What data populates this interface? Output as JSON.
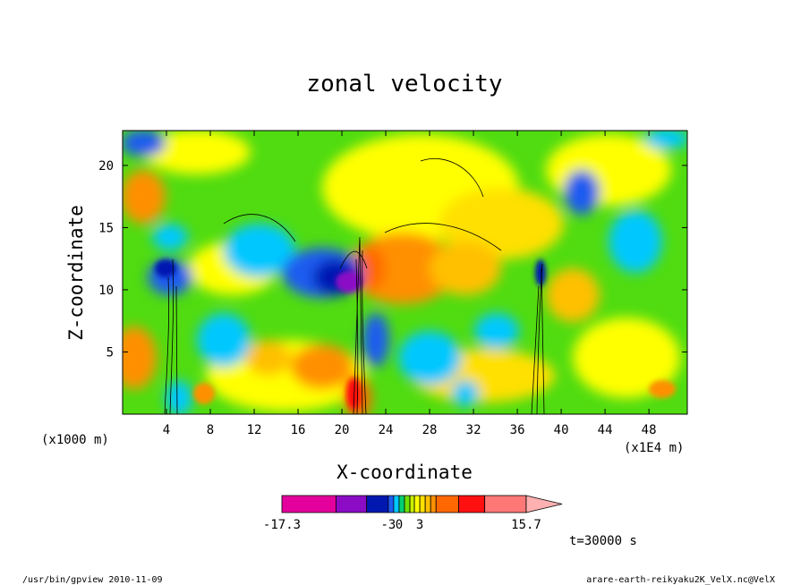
{
  "chart_data": {
    "type": "heatmap",
    "title": "zonal velocity",
    "xlabel": "X-coordinate",
    "ylabel": "Z-coordinate",
    "x_unit": "(x1E4 m)",
    "y_unit": "(x1000 m)",
    "xlim": [
      0,
      51.5
    ],
    "ylim": [
      0,
      22.8
    ],
    "x_ticks": [
      4,
      8,
      12,
      16,
      20,
      24,
      28,
      32,
      36,
      40,
      44,
      48
    ],
    "y_ticks": [
      5,
      10,
      15,
      20
    ],
    "x_tick_labels": [
      "4",
      "8",
      "12",
      "16",
      "20",
      "24",
      "28",
      "32",
      "36",
      "40",
      "44",
      "48"
    ],
    "y_tick_labels": [
      "5",
      "10",
      "15",
      "20"
    ],
    "grid": false,
    "colorbar": {
      "min": -17.3,
      "max": 15.7,
      "labels": [
        "-17.3",
        "-3",
        "0",
        "3",
        "15.7"
      ],
      "colors": [
        "#e4009c",
        "#8c0cc6",
        "#0018b0",
        "#1d5cf0",
        "#00c8ff",
        "#00d070",
        "#70e000",
        "#c8f000",
        "#ffff00",
        "#ffe000",
        "#ffc000",
        "#ff9000",
        "#ff6800",
        "#ff1010",
        "#ff7878",
        "#ffb0b0"
      ],
      "level_units": [
        0,
        60,
        94,
        118,
        124,
        130,
        136,
        142,
        147,
        153,
        159,
        165,
        171,
        196,
        225,
        271
      ]
    },
    "time_annotation": "t=30000 s"
  },
  "footer": {
    "left": "/usr/bin/gpview  2010-11-09",
    "right": "arare-earth-reikyaku2K_VelX.nc@VelX"
  }
}
